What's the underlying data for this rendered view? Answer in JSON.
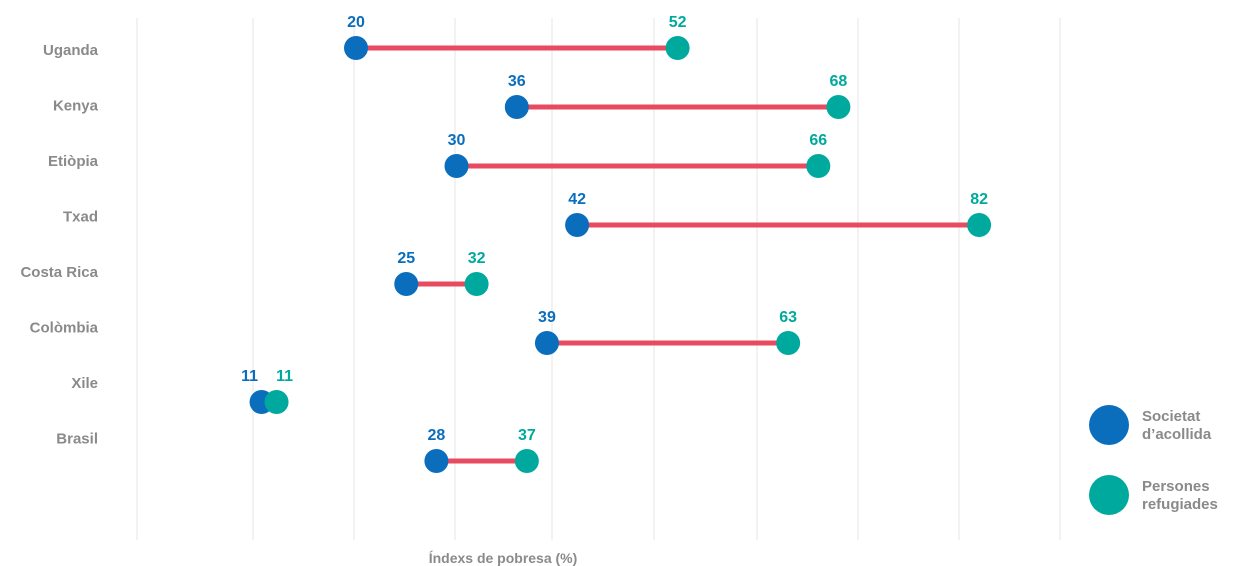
{
  "chart_data": {
    "type": "dumbbell",
    "xlabel": "Índexs de pobresa (%)",
    "grid": true,
    "categories": [
      "Uganda",
      "Kenya",
      "Etiòpia",
      "Txad",
      "Costa Rica",
      "Colòmbia",
      "Xile",
      "Brasil"
    ],
    "series": [
      {
        "name": "Societat d’acollida",
        "color": "#0a6ebd",
        "values": [
          20,
          36,
          30,
          42,
          25,
          39,
          11,
          28
        ]
      },
      {
        "name": "Persones refugiades",
        "color": "#00a99d",
        "values": [
          52,
          68,
          66,
          82,
          32,
          63,
          11,
          37
        ]
      }
    ],
    "connector_color": "#e84a5f",
    "legend": {
      "position": "right",
      "items": [
        {
          "line1": "Societat",
          "line2": "d’acollida",
          "color": "#0a6ebd"
        },
        {
          "line1": "Persones",
          "line2": "refugiades",
          "color": "#00a99d"
        }
      ]
    }
  }
}
